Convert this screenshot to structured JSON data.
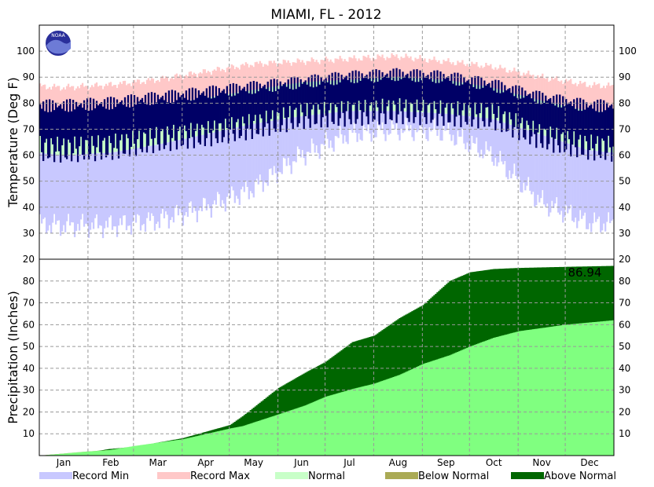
{
  "title": "MIAMI, FL - 2012",
  "logo_text": "NOAA",
  "colors": {
    "record_min": "#c8c8ff",
    "record_max": "#ffc8c8",
    "normal": "#c8ffc8",
    "observed": "#000066",
    "below_normal": "#aaaa55",
    "above_normal": "#006600",
    "normal_precip": "#80ff80",
    "grid": "#999999"
  },
  "chart_data": [
    {
      "type": "area",
      "title": "MIAMI, FL - 2012",
      "ylabel": "Temperature (Deg F)",
      "ylim": [
        20,
        110
      ],
      "y_ticks": [
        30,
        40,
        50,
        60,
        70,
        80,
        90,
        100
      ],
      "months": [
        "Jan",
        "Feb",
        "Mar",
        "Apr",
        "May",
        "Jun",
        "Jul",
        "Aug",
        "Sep",
        "Oct",
        "Nov",
        "Dec"
      ],
      "day_index_months": [
        1,
        32,
        61,
        92,
        122,
        153,
        183,
        214,
        245,
        275,
        306,
        336
      ],
      "record_min_monthly": [
        33,
        33,
        35,
        40,
        47,
        60,
        68,
        70,
        69,
        60,
        42,
        34
      ],
      "record_max_monthly": [
        86,
        87,
        89,
        92,
        95,
        96,
        97,
        98,
        96,
        94,
        90,
        87
      ],
      "normal_low_monthly": [
        60,
        61,
        64,
        68,
        72,
        75,
        77,
        77,
        76,
        74,
        68,
        62
      ],
      "normal_high_monthly": [
        76,
        77,
        79,
        82,
        85,
        88,
        89,
        90,
        89,
        86,
        81,
        77
      ],
      "observed_low_monthly": [
        62,
        63,
        66,
        68,
        71,
        75,
        76,
        77,
        76,
        75,
        67,
        63
      ],
      "observed_high_monthly": [
        79,
        80,
        82,
        84,
        86,
        88,
        90,
        91,
        90,
        87,
        82,
        79
      ],
      "grid": true,
      "legend_position": "bottom"
    },
    {
      "type": "area",
      "ylabel": "Precipitation (Inches)",
      "ylim": [
        0,
        90
      ],
      "y_ticks": [
        10,
        20,
        30,
        40,
        50,
        60,
        70,
        80
      ],
      "x_day": [
        1,
        32,
        45,
        61,
        92,
        122,
        130,
        153,
        170,
        183,
        200,
        214,
        230,
        245,
        262,
        275,
        290,
        306,
        336,
        366
      ],
      "observed_cumulative": [
        0,
        1.5,
        3,
        4,
        8,
        14,
        18,
        31,
        38,
        43,
        52,
        55,
        63,
        69,
        80,
        84,
        85.5,
        86,
        86.5,
        86.94
      ],
      "normal_cumulative": [
        0,
        1.9,
        2.5,
        4.4,
        7.5,
        12.4,
        13.5,
        18.9,
        23,
        27,
        30.5,
        33,
        37,
        42,
        46,
        50,
        54,
        57,
        60,
        62
      ],
      "final_total_label": "86.94",
      "grid": true
    }
  ],
  "legend": [
    {
      "label": "Record Min",
      "color_key": "record_min"
    },
    {
      "label": "Record Max",
      "color_key": "record_max"
    },
    {
      "label": "Normal",
      "color_key": "normal"
    },
    {
      "label": "Below Normal",
      "color_key": "below_normal"
    },
    {
      "label": "Above Normal",
      "color_key": "above_normal"
    }
  ]
}
